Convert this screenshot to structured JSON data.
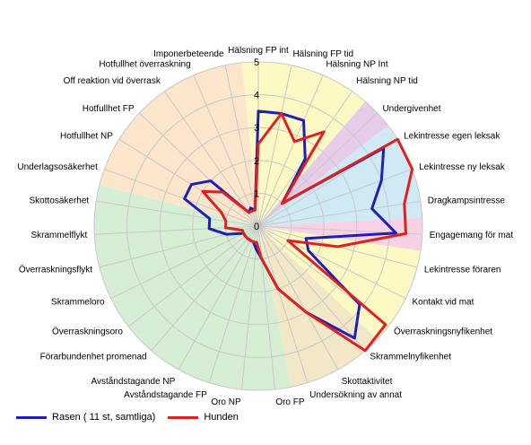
{
  "chart_data": {
    "type": "radar",
    "title": "",
    "range": [
      0,
      5
    ],
    "ticks": [
      "1",
      "2",
      "3",
      "4",
      "5"
    ],
    "grid": true,
    "legend_position": "bottom-left",
    "categories": [
      "Hälsning FP int",
      "Hälsning FP tid",
      "Hälsning NP Int",
      "Hälsning NP tid",
      "Undergivenhet",
      "Lekintresse egen leksak",
      "Lekintresse ny leksak",
      "Dragkampsintresse",
      "Engagemang för mat",
      "Lekintresse föraren",
      "Kontakt vid mat",
      "Överraskningsnyfikenhet",
      "Skrammelnyfikenhet",
      "Skottaktivitet",
      "Undersökning av annat",
      "Oro FP",
      "Oro NP",
      "Avståndstagande FP",
      "Avståndstagande NP",
      "Förarbundenhet promenad",
      "Överraskningsoro",
      "Skrammeloro",
      "Överraskningsflykt",
      "Skrammelflykt",
      "Skottosäkerhet",
      "Underlagsosäkerhet",
      "Hotfullhet NP",
      "Hotfullhet FP",
      "Off reaktion vid överrask",
      "Hotfullhet överraskning",
      "Imponerbeteende"
    ],
    "series": [
      {
        "name": "Rasen ( 11 st, samtliga)",
        "color": "#1f1fb4",
        "values": [
          3.5,
          3.5,
          3.5,
          2.5,
          1.0,
          4.5,
          4.0,
          3.5,
          4.2,
          1.5,
          1.7,
          3.9,
          4.5,
          3.0,
          2.0,
          1.0,
          0.7,
          0.5,
          0.5,
          0.5,
          0.5,
          0.5,
          1.0,
          1.5,
          1.5,
          2.4,
          2.4,
          2.0,
          0.5,
          0.6,
          0.5
        ]
      },
      {
        "name": "Hunden",
        "color": "#e02020",
        "values": [
          2.5,
          3.5,
          2.8,
          3.5,
          1.0,
          5.0,
          5.0,
          4.5,
          4.5,
          2.5,
          1.0,
          4.9,
          5.0,
          3.0,
          2.0,
          1.0,
          0.5,
          0.5,
          0.5,
          0.5,
          0.5,
          0.5,
          0.5,
          1.0,
          1.0,
          1.2,
          2.0,
          1.5,
          0.5,
          0.5,
          0.5
        ]
      }
    ],
    "background_sectors": [
      {
        "from": 0,
        "to": 4,
        "color": "#fcf9c4"
      },
      {
        "from": 4,
        "to": 5,
        "color": "#e6cce8"
      },
      {
        "from": 5,
        "to": 8,
        "color": "#cfeaf4"
      },
      {
        "from": 8,
        "to": 9,
        "color": "#f8d2e4"
      },
      {
        "from": 9,
        "to": 12,
        "color": "#fcf9c4"
      },
      {
        "from": 12,
        "to": 15,
        "color": "#f2e8c8"
      },
      {
        "from": 15,
        "to": 25,
        "color": "#d6efd4"
      },
      {
        "from": 25,
        "to": 31,
        "color": "#fbe6cc"
      }
    ]
  }
}
